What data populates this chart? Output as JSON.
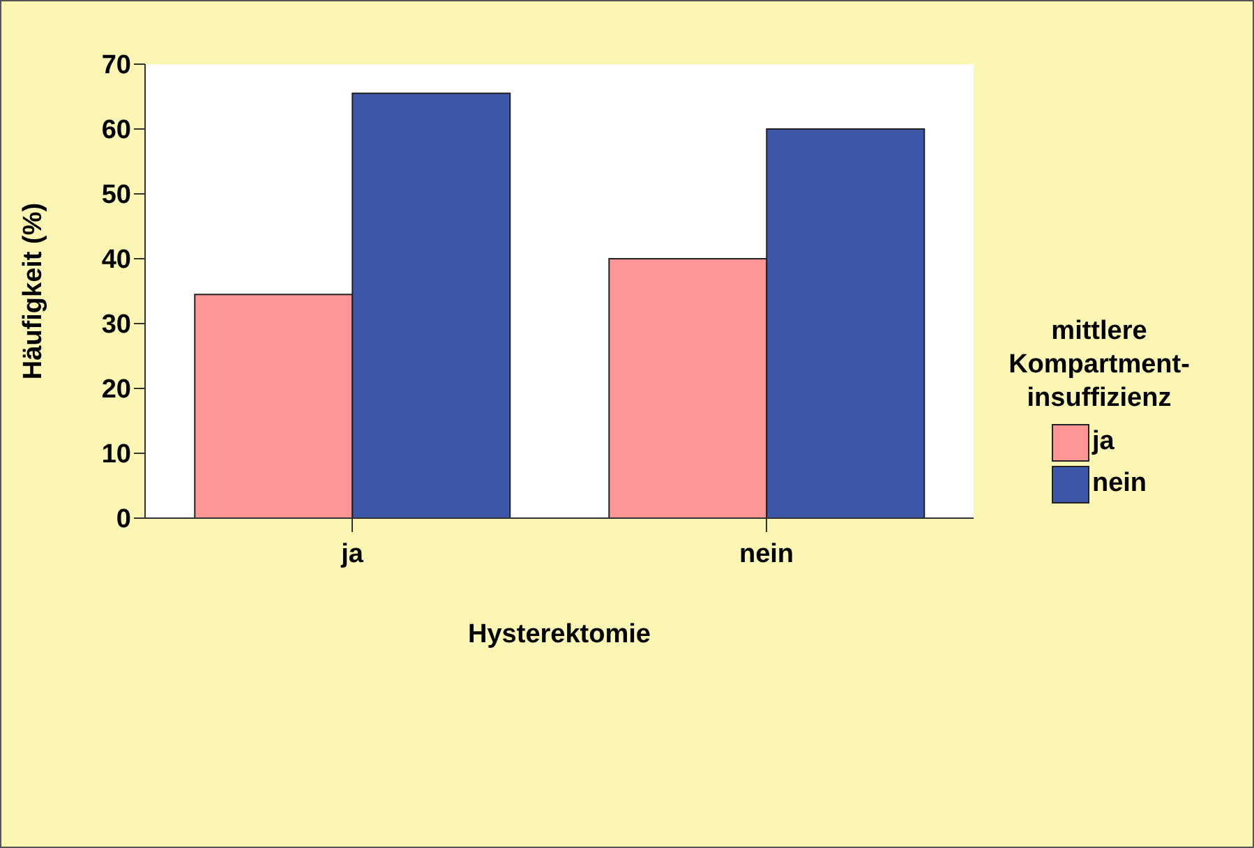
{
  "chart_data": {
    "type": "bar",
    "xlabel": "Hysterektomie",
    "ylabel": "Häufigkeit (%)",
    "legend_title": "mittlere Kompartment-insuffizienz",
    "categories": [
      "ja",
      "nein"
    ],
    "series": [
      {
        "name": "ja",
        "color": "#fe9696",
        "values": [
          34.5,
          40
        ]
      },
      {
        "name": "nein",
        "color": "#3d58a8",
        "values": [
          65.5,
          60
        ]
      }
    ],
    "ylim": [
      0,
      70
    ],
    "yticks": [
      0,
      10,
      20,
      30,
      40,
      50,
      60,
      70
    ],
    "legend": "right",
    "grid": false
  }
}
